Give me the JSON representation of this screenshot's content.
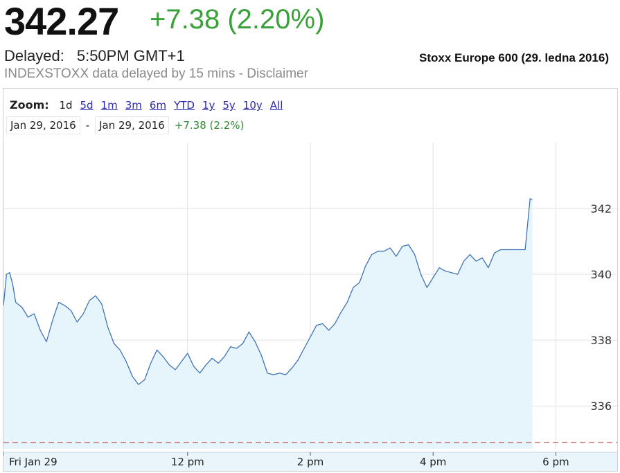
{
  "header": {
    "price": "342.27",
    "change": "+7.38 (2.20%)",
    "delayed_label": "Delayed:",
    "delayed_time": "5:50PM GMT+1",
    "disclaimer": "INDEXSTOXX data delayed by 15 mins - Disclaimer",
    "caption": "Stoxx Europe 600 (29. ledna 2016)"
  },
  "colors": {
    "positive": "#3aa03a",
    "line": "#3f73b3",
    "area_fill": "#e6f4fc",
    "prev_close": "#c05050",
    "axis_bg": "#e9f4fb"
  },
  "zoom": {
    "label": "Zoom:",
    "options": [
      "1d",
      "5d",
      "1m",
      "3m",
      "6m",
      "YTD",
      "1y",
      "5y",
      "10y",
      "All"
    ],
    "active": "1d"
  },
  "range": {
    "from": "Jan 29, 2016",
    "dash": "-",
    "to": "Jan 29, 2016",
    "change": "+7.38 (2.2%)"
  },
  "chart_data": {
    "type": "area",
    "title": "",
    "xlabel": "",
    "ylabel": "",
    "x_tick_labels": [
      "Fri Jan 29",
      "12 pm",
      "2 pm",
      "4 pm",
      "6 pm"
    ],
    "x_ticks_hours": [
      9,
      12,
      14,
      16,
      18
    ],
    "y_tick_labels": [
      "342",
      "340",
      "338",
      "336"
    ],
    "y_ticks": [
      342,
      340,
      338,
      336
    ],
    "ylim": [
      334.7,
      344.0
    ],
    "xlim_hours": [
      9.0,
      19.0
    ],
    "previous_close": 334.89,
    "grid": true,
    "series": [
      {
        "x_hours": [
          9.0,
          9.05,
          9.1,
          9.15,
          9.2,
          9.3,
          9.4,
          9.5,
          9.6,
          9.7,
          9.8,
          9.9,
          10.0,
          10.1,
          10.2,
          10.3,
          10.4,
          10.5,
          10.6,
          10.7,
          10.8,
          10.9,
          11.0,
          11.1,
          11.2,
          11.3,
          11.4,
          11.5,
          11.6,
          11.7,
          11.8,
          11.9,
          12.0,
          12.1,
          12.2,
          12.3,
          12.4,
          12.5,
          12.6,
          12.7,
          12.8,
          12.9,
          13.0,
          13.1,
          13.2,
          13.3,
          13.4,
          13.5,
          13.6,
          13.7,
          13.8,
          13.9,
          14.0,
          14.1,
          14.2,
          14.3,
          14.4,
          14.5,
          14.6,
          14.7,
          14.8,
          14.9,
          15.0,
          15.1,
          15.2,
          15.3,
          15.4,
          15.5,
          15.6,
          15.7,
          15.8,
          15.9,
          16.0,
          16.1,
          16.2,
          16.3,
          16.4,
          16.5,
          16.6,
          16.7,
          16.8,
          16.9,
          17.0,
          17.1,
          17.2,
          17.3,
          17.4,
          17.5,
          17.58,
          17.62
        ],
        "values": [
          339.05,
          340.0,
          340.05,
          339.7,
          339.15,
          339.0,
          338.7,
          338.8,
          338.3,
          337.95,
          338.6,
          339.15,
          339.05,
          338.9,
          338.55,
          338.8,
          339.2,
          339.35,
          339.1,
          338.4,
          337.9,
          337.7,
          337.35,
          336.9,
          336.65,
          336.8,
          337.3,
          337.7,
          337.5,
          337.25,
          337.1,
          337.35,
          337.6,
          337.2,
          337.0,
          337.25,
          337.45,
          337.3,
          337.5,
          337.8,
          337.75,
          337.9,
          338.25,
          337.95,
          337.55,
          337.0,
          336.95,
          337.0,
          336.95,
          337.15,
          337.4,
          337.75,
          338.1,
          338.45,
          338.5,
          338.3,
          338.5,
          338.85,
          339.15,
          339.6,
          339.75,
          340.25,
          340.6,
          340.7,
          340.7,
          340.8,
          340.55,
          340.85,
          340.9,
          340.6,
          340.0,
          339.6,
          339.9,
          340.2,
          340.1,
          340.05,
          340.0,
          340.4,
          340.6,
          340.4,
          340.5,
          340.2,
          340.65,
          340.75,
          340.75,
          340.75,
          340.75,
          340.75,
          342.3,
          342.27
        ]
      }
    ]
  }
}
